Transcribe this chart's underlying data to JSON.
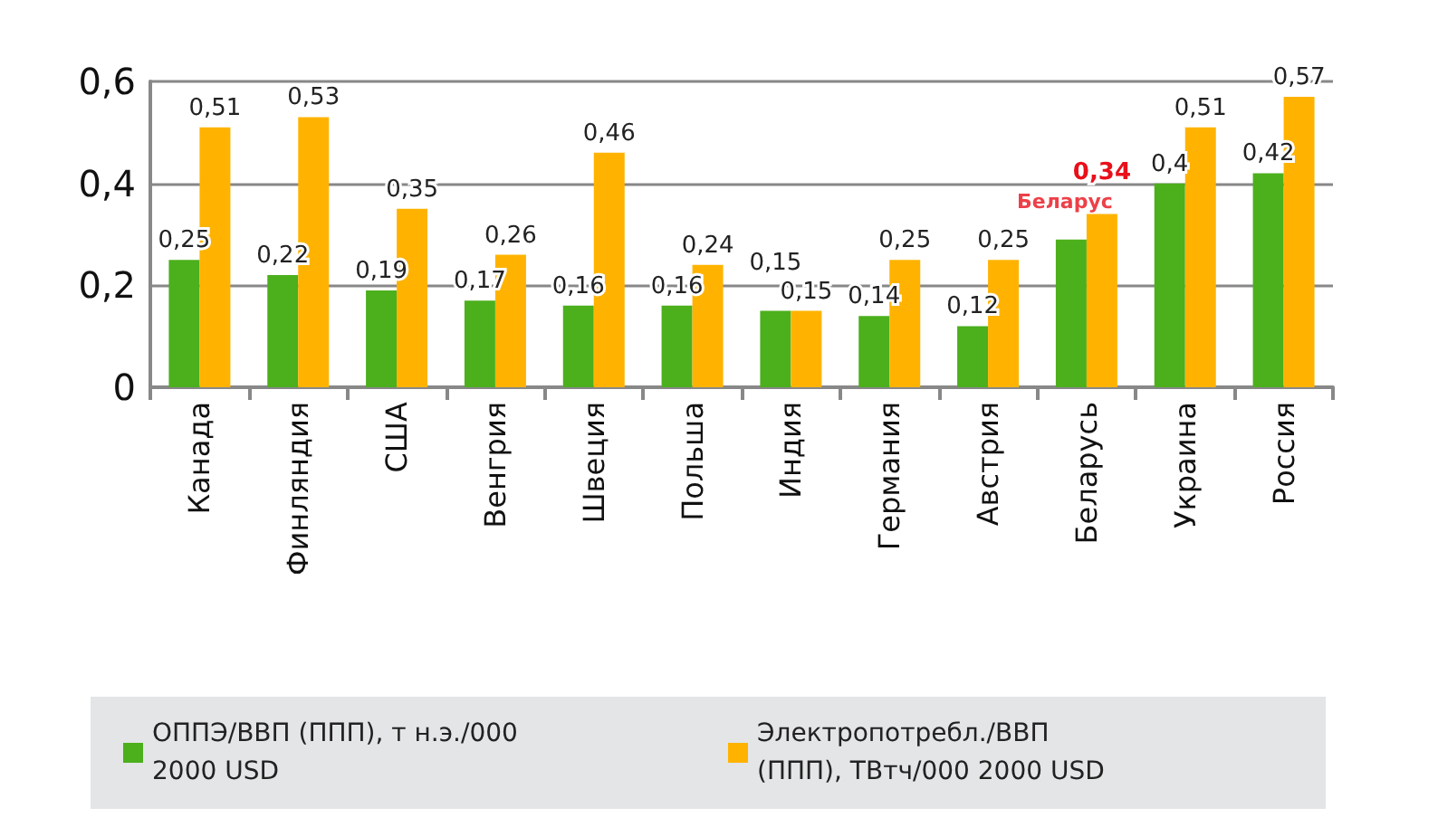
{
  "chart_data": {
    "type": "bar",
    "categories": [
      "Канада",
      "Финляндия",
      "США",
      "Венгрия",
      "Швеция",
      "Польша",
      "Индия",
      "Германия",
      "Австрия",
      "Беларусь",
      "Украина",
      "Россия"
    ],
    "series": [
      {
        "name": "ОППЭ/ВВП (ППП), т н.э./000 2000 USD",
        "color": "#4caf1c",
        "values": [
          0.25,
          0.22,
          0.19,
          0.17,
          0.16,
          0.16,
          0.15,
          0.14,
          0.12,
          0.29,
          0.4,
          0.42
        ],
        "value_labels": [
          "0,25",
          "0,22",
          "0,19",
          "0,17",
          "0,16",
          "0,16",
          "0,15",
          "0,14",
          "0,12",
          null,
          "0,4",
          "0,42"
        ]
      },
      {
        "name": "Электропотребл./ВВП (ППП), ТВтч/000 2000 USD",
        "color": "#ffb300",
        "values": [
          0.51,
          0.53,
          0.35,
          0.26,
          0.46,
          0.24,
          0.15,
          0.25,
          0.25,
          0.34,
          0.51,
          0.57
        ],
        "value_labels": [
          "0,51",
          "0,53",
          "0,35",
          "0,26",
          "0,46",
          "0,24",
          "0,15",
          "0,25",
          "0,25",
          "0,34",
          "0,51",
          "0,57"
        ]
      }
    ],
    "ylim": [
      0,
      0.6
    ],
    "yticks": [
      {
        "value": 0,
        "label": "0"
      },
      {
        "value": 0.2,
        "label": "0,2"
      },
      {
        "value": 0.4,
        "label": "0,4"
      },
      {
        "value": 0.6,
        "label": "0,6"
      }
    ],
    "grid": "y",
    "legend": "bottom",
    "annotations": [
      {
        "text": "Беларус",
        "x": "Беларусь",
        "y": 0.34
      }
    ]
  }
}
